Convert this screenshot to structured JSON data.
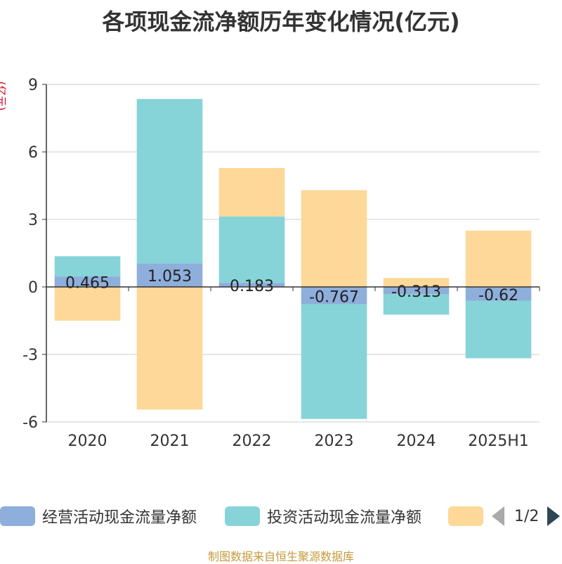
{
  "title": "各项现金流净额历年变化情况(亿元)",
  "unit_label": "(亿元)",
  "source": "制图数据来自恒生聚源数据库",
  "pager": "1/2",
  "colors": {
    "operating": "#8eaedb",
    "investing": "#86d4d8",
    "financing": "#fdd898",
    "axis": "#333333",
    "grid": "#cccccc"
  },
  "chart_data": {
    "type": "bar",
    "stacked": true,
    "categories": [
      "2020",
      "2021",
      "2022",
      "2023",
      "2024",
      "2025H1"
    ],
    "ylim": [
      -6,
      9
    ],
    "yticks": [
      9,
      6,
      3,
      0,
      -3,
      -6
    ],
    "grid": true,
    "legend_position": "bottom",
    "series": [
      {
        "name": "经营活动现金流量净额",
        "color": "#8eaedb",
        "values": [
          0.465,
          1.053,
          0.183,
          -0.767,
          -0.313,
          -0.62
        ],
        "labels": [
          "0.465",
          "1.053",
          "0.183",
          "-0.767",
          "-0.313",
          "-0.62"
        ]
      },
      {
        "name": "投资活动现金流量净额",
        "color": "#86d4d8",
        "values": [
          0.9,
          7.3,
          2.95,
          -5.1,
          -0.92,
          -2.55
        ]
      },
      {
        "name": "",
        "color": "#fdd898",
        "values": [
          -1.5,
          -5.45,
          2.15,
          4.3,
          0.4,
          2.5
        ]
      }
    ]
  }
}
